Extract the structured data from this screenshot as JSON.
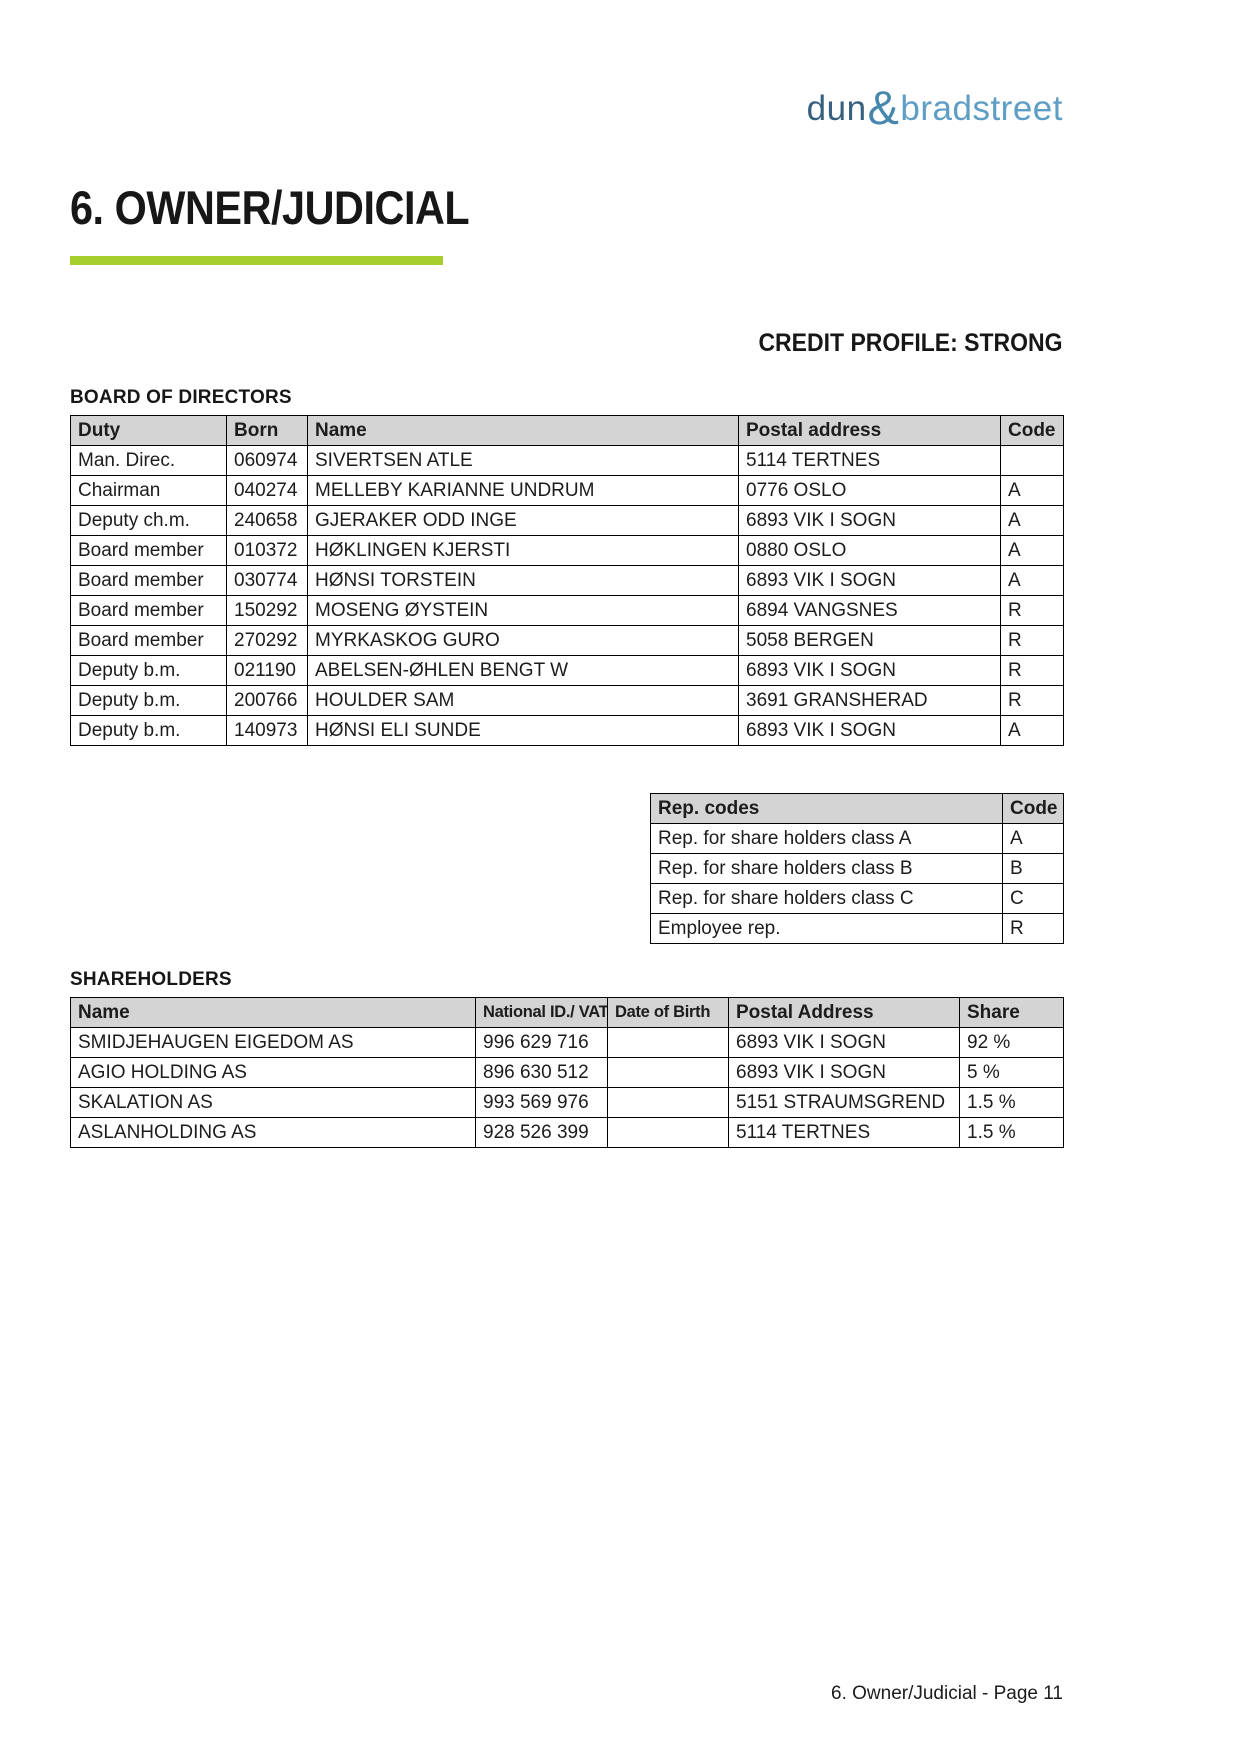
{
  "logo": {
    "dun": "dun",
    "amp": "&",
    "bradstreet": "bradstreet"
  },
  "page": {
    "title": "6. OWNER/JUDICIAL",
    "credit_profile": "CREDIT PROFILE: STRONG",
    "footer": "6. Owner/Judicial - Page 11"
  },
  "board": {
    "section_title": "BOARD OF DIRECTORS",
    "headers": [
      "Duty",
      "Born",
      "Name",
      "Postal address",
      "Code"
    ],
    "rows": [
      [
        "Man. Direc.",
        "060974",
        "SIVERTSEN ATLE",
        "5114 TERTNES",
        ""
      ],
      [
        "Chairman",
        "040274",
        "MELLEBY KARIANNE UNDRUM",
        "0776 OSLO",
        "A"
      ],
      [
        "Deputy ch.m.",
        "240658",
        "GJERAKER ODD INGE",
        "6893 VIK I SOGN",
        "A"
      ],
      [
        "Board member",
        "010372",
        "HØKLINGEN KJERSTI",
        "0880 OSLO",
        "A"
      ],
      [
        "Board member",
        "030774",
        "HØNSI TORSTEIN",
        "6893 VIK I SOGN",
        "A"
      ],
      [
        "Board member",
        "150292",
        "MOSENG ØYSTEIN",
        "6894 VANGSNES",
        "R"
      ],
      [
        "Board member",
        "270292",
        "MYRKASKOG GURO",
        "5058 BERGEN",
        "R"
      ],
      [
        "Deputy b.m.",
        "021190",
        "ABELSEN-ØHLEN BENGT W",
        "6893 VIK I SOGN",
        "R"
      ],
      [
        "Deputy b.m.",
        "200766",
        "HOULDER SAM",
        "3691 GRANSHERAD",
        "R"
      ],
      [
        "Deputy b.m.",
        "140973",
        "HØNSI ELI SUNDE",
        "6893 VIK I SOGN",
        "A"
      ]
    ]
  },
  "rep_codes": {
    "headers": [
      "Rep. codes",
      "Code"
    ],
    "rows": [
      [
        "Rep. for share holders class A",
        "A"
      ],
      [
        "Rep. for share holders class B",
        "B"
      ],
      [
        "Rep. for share holders class C",
        "C"
      ],
      [
        "Employee rep.",
        "R"
      ]
    ]
  },
  "shareholders": {
    "section_title": "SHAREHOLDERS",
    "headers": [
      "Name",
      "National ID./ VAT",
      "Date of Birth",
      "Postal Address",
      "Share"
    ],
    "rows": [
      [
        "SMIDJEHAUGEN EIGEDOM AS",
        "996 629 716",
        "",
        "6893 VIK I SOGN",
        "92 %"
      ],
      [
        "AGIO HOLDING AS",
        "896 630 512",
        "",
        "6893 VIK I SOGN",
        "5 %"
      ],
      [
        "SKALATION AS",
        "993 569 976",
        "",
        "5151 STRAUMSGREND",
        "1.5 %"
      ],
      [
        "ASLANHOLDING AS",
        "928 526 399",
        "",
        "5114 TERTNES",
        "1.5 %"
      ]
    ]
  },
  "colors": {
    "accent_green": "#a5ce2d",
    "logo_dark_blue": "#35617f",
    "logo_amp_blue": "#4587ad",
    "logo_light_blue": "#5e9ec5",
    "table_header_bg": "#d4d4d4",
    "table_border": "#000000"
  }
}
